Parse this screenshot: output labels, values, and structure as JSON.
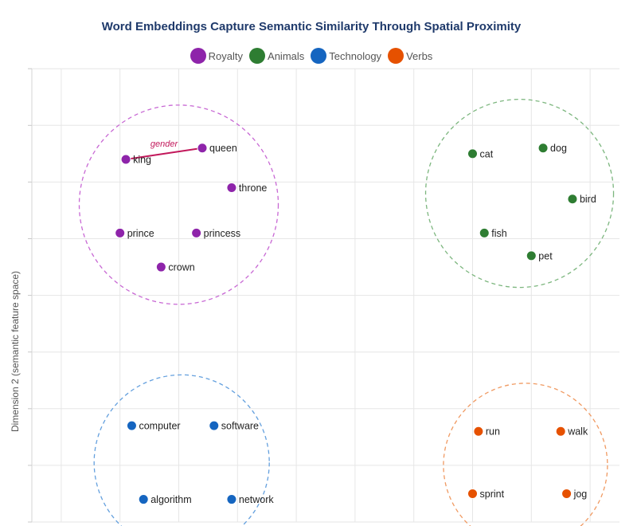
{
  "chart_data": {
    "type": "scatter",
    "title": "Word Embeddings Capture Semantic Similarity Through Spatial Proximity",
    "xlabel": "",
    "ylabel": "Dimension 2 (semantic feature space)",
    "grid": true,
    "legend_position": "top-center",
    "series": [
      {
        "name": "Royalty",
        "color": "#8e24aa",
        "cluster_color": "#c868d4",
        "points": [
          {
            "label": "king",
            "x": 1.1,
            "y": 6.4
          },
          {
            "label": "queen",
            "x": 2.4,
            "y": 6.6
          },
          {
            "label": "throne",
            "x": 2.9,
            "y": 5.9
          },
          {
            "label": "prince",
            "x": 1.0,
            "y": 5.1
          },
          {
            "label": "princess",
            "x": 2.3,
            "y": 5.1
          },
          {
            "label": "crown",
            "x": 1.7,
            "y": 4.5
          }
        ],
        "cluster_center": [
          2.0,
          5.6
        ]
      },
      {
        "name": "Animals",
        "color": "#2e7d32",
        "cluster_color": "#7cb67e",
        "points": [
          {
            "label": "cat",
            "x": 7.0,
            "y": 6.5
          },
          {
            "label": "dog",
            "x": 8.2,
            "y": 6.6
          },
          {
            "label": "bird",
            "x": 8.7,
            "y": 5.7
          },
          {
            "label": "fish",
            "x": 7.2,
            "y": 5.1
          },
          {
            "label": "pet",
            "x": 8.0,
            "y": 4.7
          }
        ],
        "cluster_center": [
          7.8,
          5.8
        ]
      },
      {
        "name": "Technology",
        "color": "#1565c0",
        "cluster_color": "#64a0de",
        "points": [
          {
            "label": "computer",
            "x": 1.2,
            "y": 1.7
          },
          {
            "label": "software",
            "x": 2.6,
            "y": 1.7
          },
          {
            "label": "algorithm",
            "x": 1.4,
            "y": 0.4
          },
          {
            "label": "network",
            "x": 2.9,
            "y": 0.4
          }
        ],
        "cluster_center": [
          2.05,
          1.05
        ]
      },
      {
        "name": "Verbs",
        "color": "#e65100",
        "cluster_color": "#f09a62",
        "points": [
          {
            "label": "run",
            "x": 7.1,
            "y": 1.6
          },
          {
            "label": "walk",
            "x": 8.5,
            "y": 1.6
          },
          {
            "label": "sprint",
            "x": 7.0,
            "y": 0.5
          },
          {
            "label": "jog",
            "x": 8.6,
            "y": 0.5
          }
        ],
        "cluster_center": [
          7.9,
          1.0
        ]
      }
    ],
    "annotations": [
      {
        "text": "gender",
        "from": "king",
        "to": "queen",
        "color": "#c2185b"
      }
    ],
    "xlim": [
      -0.5,
      10
    ],
    "ylim": [
      0,
      8
    ]
  }
}
